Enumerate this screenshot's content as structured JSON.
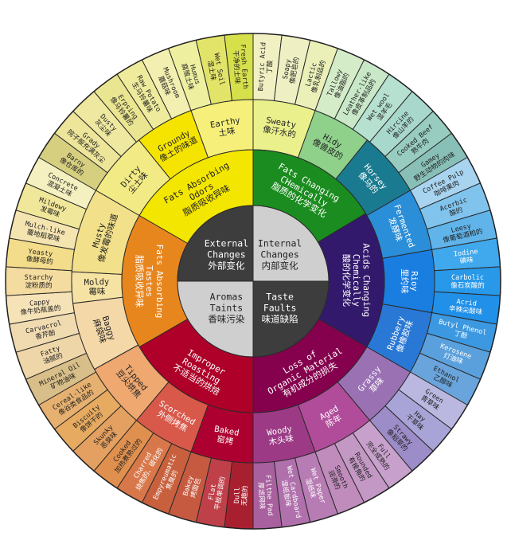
{
  "center": [
    {
      "en": [
        "Internal",
        "Changes"
      ],
      "zh": "内部变化",
      "color": "#cfcfcf"
    },
    {
      "en": [
        "Taste",
        "Faults"
      ],
      "zh": "味道缺陷",
      "color": "#3d3d3d"
    },
    {
      "en": [
        "Aromas",
        "Taints"
      ],
      "zh": "香味污染",
      "color": "#cfcfcf"
    },
    {
      "en": [
        "External",
        "Changes"
      ],
      "zh": "外部变化",
      "color": "#3d3d3d"
    }
  ],
  "tier2": [
    {
      "en": [
        "Fats Changing",
        "CHemically"
      ],
      "zh": "脂质的化学变化",
      "color": "#1b8c1f"
    },
    {
      "en": [
        "Acids Changing",
        "Chemically"
      ],
      "zh": "酸的化学变化",
      "color": "#32196c"
    },
    {
      "en": [
        "Loss of",
        "Organic Material"
      ],
      "zh": "有机成分的损失",
      "color": "#85004d"
    },
    {
      "en": [
        "Improper",
        "Roasting"
      ],
      "zh": "不适当的烘焙",
      "color": "#ae0028"
    },
    {
      "en": [
        "Fats Absorbing",
        "Tastes"
      ],
      "zh": "脂质吸收异味",
      "color": "#e8861e"
    },
    {
      "en": [
        "Fats Absorbing",
        "Odors"
      ],
      "zh": "脂质吸收异味",
      "color": "#f3e600"
    }
  ],
  "tier3": [
    {
      "en": "Sweaty",
      "zh": "像汗水的",
      "color": "#eaf08c"
    },
    {
      "en": "Hidy",
      "zh": "像兽皮的",
      "color": "#8fd08b"
    },
    {
      "en": "Horsey",
      "zh": "像马的",
      "color": "#1a7b90"
    },
    {
      "en": "Fermented",
      "zh": "发酵味",
      "color": "#2a8ed8"
    },
    {
      "en": "Rioy",
      "zh": "里约味",
      "color": "#1a7ee0"
    },
    {
      "en": "Rubbery",
      "zh": "像橡胶味",
      "color": "#2a78d6"
    },
    {
      "en": "Grassy",
      "zh": "草味",
      "color": "#9a72b4"
    },
    {
      "en": "Aged",
      "zh": "陈年",
      "color": "#b04c9a"
    },
    {
      "en": "Woody",
      "zh": "木头味",
      "color": "#9c3a86"
    },
    {
      "en": "Baked",
      "zh": "窑烤",
      "color": "#ae0030"
    },
    {
      "en": "Scorched",
      "zh": "外侧烤焦",
      "color": "#d8584a"
    },
    {
      "en": "Tipped",
      "zh": "豆尖烘焦",
      "color": "#eea870"
    },
    {
      "en": "Baggy",
      "zh": "麻袋味",
      "color": "#f5d8a8"
    },
    {
      "en": "Moldy",
      "zh": "霉味",
      "color": "#f6e2a2"
    },
    {
      "en": "Musty",
      "zh": "像发霉的味道",
      "color": "#f2e08a"
    },
    {
      "en": "Dirty",
      "zh": "尘土味",
      "color": "#f2ea84"
    },
    {
      "en": "Groundy",
      "zh": "像土的味道",
      "color": "#f5e400"
    },
    {
      "en": "Earthy",
      "zh": "土味",
      "color": "#f6f07a"
    }
  ],
  "tier4": [
    {
      "en": "Butyric Acid",
      "zh": "丁酸",
      "color": "#f0f0c2"
    },
    {
      "en": "Soapy",
      "zh": "像肥皂的",
      "color": "#eef0c4"
    },
    {
      "en": "Lactic",
      "zh": "像乳制品的",
      "color": "#eaf0b8"
    },
    {
      "en": "Tallowy",
      "zh": "像油脂的",
      "color": "#d4ecc8"
    },
    {
      "en": "Leather-like",
      "zh": "像皮革制品的",
      "color": "#c8e8c8"
    },
    {
      "en": "Wet wool",
      "zh": "湿羊毛",
      "color": "#b6e0d0"
    },
    {
      "en": "Hircine",
      "zh": "像山羊的",
      "color": "#a8d8cc"
    },
    {
      "en": "Cooked Beef",
      "zh": "熟牛肉",
      "color": "#98ccc0"
    },
    {
      "en": "Gamey",
      "zh": "野生动物的肉味",
      "color": "#88c0b8"
    },
    {
      "en": "Coffee Pulp",
      "zh": "咖啡果肉",
      "color": "#a8d4f0"
    },
    {
      "en": "Acerbic",
      "zh": "酸的",
      "color": "#80c4ee"
    },
    {
      "en": "Leesy",
      "zh": "像葡萄酒粕的",
      "color": "#60b4ea"
    },
    {
      "en": "Iodine",
      "zh": "碘味",
      "color": "#40a8ec"
    },
    {
      "en": "Carbolic",
      "zh": "像石炭酸的",
      "color": "#2898e8"
    },
    {
      "en": "Acrid",
      "zh": "辛辣尖酸味",
      "color": "#2090e8"
    },
    {
      "en": "Butyl Phenol",
      "zh": "丁酚",
      "color": "#3c98e0"
    },
    {
      "en": "Kerosene",
      "zh": "灯油味",
      "color": "#5aa0dc"
    },
    {
      "en": "Ethanol",
      "zh": "乙醇味",
      "color": "#6aa4dc"
    },
    {
      "en": "Green",
      "zh": "青草味",
      "color": "#bab8e0"
    },
    {
      "en": "Hay",
      "zh": "干草味",
      "color": "#a8a4d8"
    },
    {
      "en": "Strawy",
      "zh": "像稻草的",
      "color": "#9c8cc8"
    },
    {
      "en": "Full",
      "zh": "完全成熟的",
      "color": "#c8a0cc"
    },
    {
      "en": "Rounded",
      "zh": "有棱角的",
      "color": "#c498c4"
    },
    {
      "en": "Smooth",
      "zh": "润滑的",
      "color": "#c08cbc"
    },
    {
      "en": "Wet Paper",
      "zh": "湿纸味",
      "color": "#b87cb4"
    },
    {
      "en": "Wet Cardboard",
      "zh": "湿纸板味",
      "color": "#b070ac"
    },
    {
      "en": "Filthe Pad",
      "zh": "厚滤网味",
      "color": "#a8609e"
    },
    {
      "en": "Dull",
      "zh": "无趣的",
      "color": "#a82030"
    },
    {
      "en": "Flat",
      "zh": "平板单调的",
      "color": "#c0404a"
    },
    {
      "en": "Bakey",
      "zh": "烤面包",
      "color": "#c65a40"
    },
    {
      "en": "Empyreumatic",
      "zh": "焦臭的",
      "color": "#c8603e"
    },
    {
      "en": "Charred",
      "zh": "烧焦的、碳化的",
      "color": "#d8784a"
    },
    {
      "en": "Cooked",
      "zh": "加热煮熟过的",
      "color": "#e0904e"
    },
    {
      "en": "Skunky",
      "zh": "恶臭味",
      "color": "#e4a060"
    },
    {
      "en": "Biscuity",
      "zh": "像饼干的",
      "color": "#e6aa60"
    },
    {
      "en": "Cereal-like",
      "zh": "像谷类食品的",
      "color": "#e6b070"
    },
    {
      "en": "Mineral Oil",
      "zh": "矿物油味",
      "color": "#d8be88"
    },
    {
      "en": "Fatty",
      "zh": "油腻的",
      "color": "#efd6a8"
    },
    {
      "en": "Carvacrol",
      "zh": "香芹酚",
      "color": "#f0dab0"
    },
    {
      "en": "Cappy",
      "zh": "像牛奶瓶盖的",
      "color": "#f5e2b6"
    },
    {
      "en": "Starchy",
      "zh": "淀粉质的",
      "color": "#f4dca0"
    },
    {
      "en": "Yeasty",
      "zh": "像酵母的",
      "color": "#f3dc8a"
    },
    {
      "en": "Mulch-like",
      "zh": "覆地稻草味",
      "color": "#f4e4b0"
    },
    {
      "en": "Mildewy",
      "zh": "发霉味",
      "color": "#f1e79a"
    },
    {
      "en": "Concrete",
      "zh": "混凝土味",
      "color": "#f5f0c0"
    },
    {
      "en": "Barny",
      "zh": "像仓库的",
      "color": "#d6cf80"
    },
    {
      "en": "Grady",
      "zh": "院子般充满灰尘",
      "color": "#ece59a"
    },
    {
      "en": "Dusty",
      "zh": "灰尘味",
      "color": "#eee8a0"
    },
    {
      "en": "Erpsing",
      "zh": "像马铃薯的",
      "color": "#eae590"
    },
    {
      "en": "Raw Potato",
      "zh": "生马铃薯味",
      "color": "#eeeb9c"
    },
    {
      "en": "Mushroom",
      "zh": "蘑菇味",
      "color": "#f3efb0"
    },
    {
      "en": "Humus",
      "zh": "腐殖土味",
      "color": "#eef0a0"
    },
    {
      "en": "Wet Soil",
      "zh": "湿土味",
      "color": "#e2e46a"
    },
    {
      "en": "Fresh Earth",
      "zh": "干净的土味",
      "color": "#d6e04a"
    }
  ]
}
